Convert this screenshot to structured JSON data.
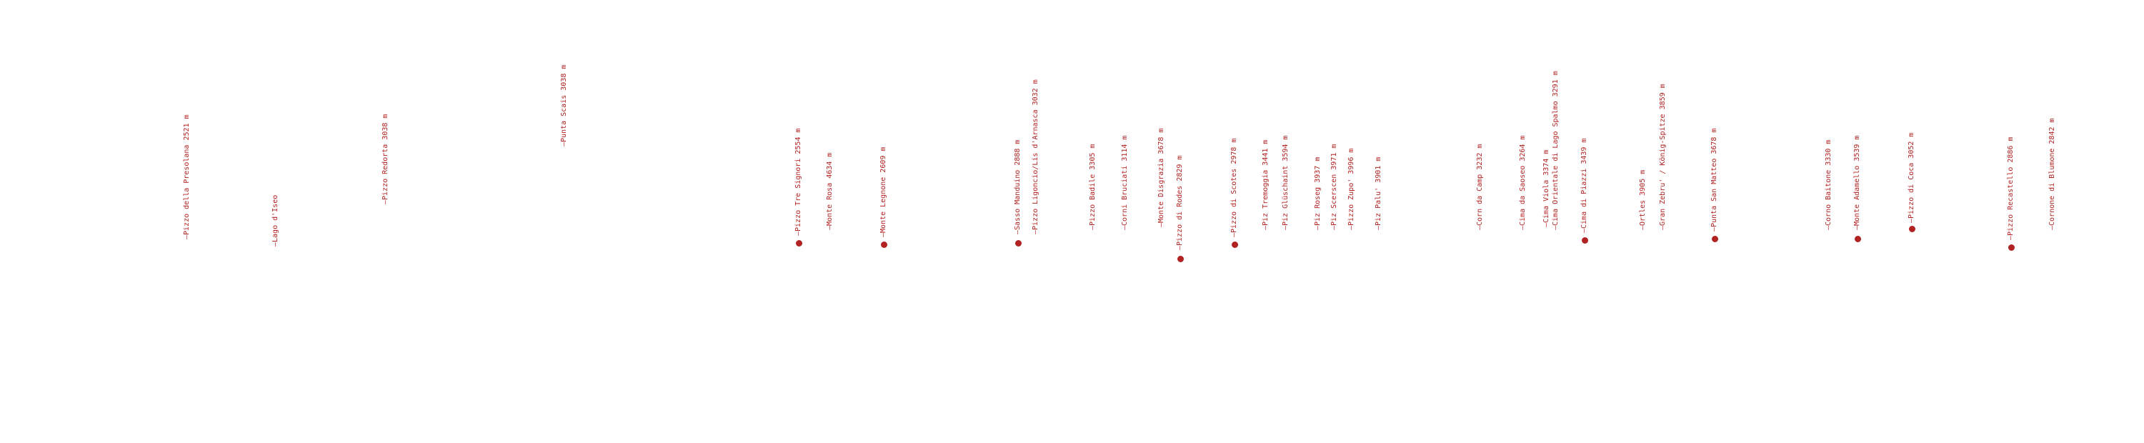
{
  "accent_color": "#b22222",
  "peaks": [
    {
      "label": "—Pizzo della Presolana 2521 m",
      "marker": false
    },
    {
      "label": "—Lago d'Iseo",
      "marker": false
    },
    {
      "label": "—Pizzo Redorta 3038 m",
      "marker": false
    },
    {
      "label": "—Punta Scais 3038 m",
      "marker": false
    },
    {
      "label": "—Pizzo Tre Signori 2554 m",
      "marker": true
    },
    {
      "label": "—Monte Rosa 4634 m",
      "marker": false
    },
    {
      "label": "—Monte Legnone 2609 m",
      "marker": true
    },
    {
      "label": "—Sasso Manduino 2888 m",
      "marker": true
    },
    {
      "label": "—Pizzo Ligoncio/Lis d'Arnasca 3032 m",
      "marker": false
    },
    {
      "label": "—Pizzo Badile 3305 m",
      "marker": false
    },
    {
      "label": "—Corni Bruciati 3114 m",
      "marker": false
    },
    {
      "label": "—Monte Disgrazia 3678 m",
      "marker": false
    },
    {
      "label": "—Pizzo di Rodes 2829 m",
      "marker": true
    },
    {
      "label": "—Pizzo di Scotes 2978 m",
      "marker": true
    },
    {
      "label": "—Piz Tremoggia 3441 m",
      "marker": false
    },
    {
      "label": "—Piz Glüschaint 3594 m",
      "marker": false
    },
    {
      "label": "—Piz Roseg 3937 m",
      "marker": false
    },
    {
      "label": "—Piz Scerscen 3971 m",
      "marker": false
    },
    {
      "label": "—Pizzo Zupo' 3996 m",
      "marker": false
    },
    {
      "label": "—Piz Palu' 3901 m",
      "marker": false
    },
    {
      "label": "—Corn da Camp 3232 m",
      "marker": false
    },
    {
      "label": "—Cima da Saoseo 3264 m",
      "marker": false
    },
    {
      "label": "—Cima Viola 3374 m",
      "marker": false
    },
    {
      "label": "—Cima Orientale di Lago Spalmo 3291 m",
      "marker": false
    },
    {
      "label": "—Cima di Piazzi 3439 m",
      "marker": true
    },
    {
      "label": "—Ortles 3905 m",
      "marker": false
    },
    {
      "label": "—Gran Zebru' / König-Spitze 3859 m",
      "marker": false
    },
    {
      "label": "—Punta San Matteo 3678 m",
      "marker": true
    },
    {
      "label": "—Corno Baitone 3330 m",
      "marker": false
    },
    {
      "label": "—Monte Adamello 3539 m",
      "marker": true
    },
    {
      "label": "—Pizzo di Coca 3052 m",
      "marker": true
    },
    {
      "label": "—Pizzo Recastello 2886 m",
      "marker": true
    },
    {
      "label": "—Cornone di Blumone 2842 m",
      "marker": false
    }
  ]
}
